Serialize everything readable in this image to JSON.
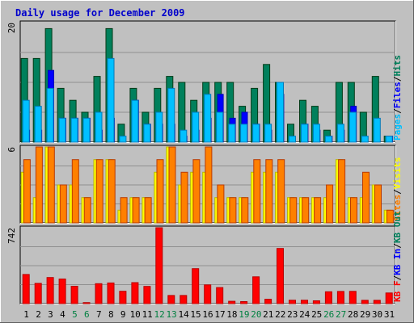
{
  "chart_data": {
    "type": "bar",
    "title": "Daily usage for December 2009",
    "categories": [
      "1",
      "2",
      "3",
      "4",
      "5",
      "6",
      "7",
      "8",
      "9",
      "10",
      "11",
      "12",
      "13",
      "14",
      "15",
      "16",
      "17",
      "18",
      "19",
      "20",
      "21",
      "22",
      "23",
      "24",
      "25",
      "26",
      "27",
      "28",
      "29",
      "30",
      "31"
    ],
    "weekend_days": [
      "5",
      "6",
      "12",
      "13",
      "19",
      "20",
      "26",
      "27"
    ],
    "colors": {
      "title": "#0000cc",
      "weekday_label": "#000000",
      "weekend_label": "#008040",
      "hits": "#00805c",
      "files": "#0000ff",
      "pages": "#00c0ff",
      "visits": "#ffff00",
      "sites": "#ff8000",
      "kb_f": "#ff0000",
      "kb_in": "#0000ff",
      "kb_out": "#00805c",
      "panel": "#c0c0c0",
      "frame": "#c0c0c0"
    },
    "panels": [
      {
        "ymax_label": "20",
        "ymax": 20,
        "legend": [
          {
            "text": "Pages",
            "color": "#00c0ff"
          },
          {
            "text": "/",
            "color": "#000000"
          },
          {
            "text": "Files",
            "color": "#0000ff"
          },
          {
            "text": "/",
            "color": "#000000"
          },
          {
            "text": "Hits",
            "color": "#00805c"
          }
        ],
        "series": [
          {
            "name": "Hits",
            "values": [
              14,
              14,
              19,
              9,
              7,
              5,
              11,
              19,
              3,
              9,
              5,
              9,
              11,
              10,
              7,
              10,
              10,
              10,
              6,
              9,
              13,
              10,
              3,
              7,
              6,
              2,
              10,
              10,
              5,
              11,
              1
            ]
          },
          {
            "name": "Files",
            "values": [
              2,
              2,
              12,
              4,
              4,
              4,
              2,
              4,
              0,
              7,
              3,
              3,
              3,
              1,
              2,
              4,
              8,
              4,
              5,
              3,
              2,
              8,
              0,
              3,
              2,
              1,
              2,
              6,
              0,
              0,
              1
            ]
          },
          {
            "name": "Pages",
            "values": [
              7,
              6,
              9,
              4,
              4,
              4,
              5,
              14,
              1,
              7,
              3,
              5,
              9,
              2,
              5,
              8,
              5,
              3,
              3,
              3,
              3,
              10,
              1,
              3,
              3,
              1,
              3,
              5,
              1,
              4,
              1
            ]
          }
        ]
      },
      {
        "ymax_label": "6",
        "ymax": 6,
        "legend": [
          {
            "text": "Sites",
            "color": "#ff8000"
          },
          {
            "text": "/",
            "color": "#000000"
          },
          {
            "text": "Visits",
            "color": "#ffff00"
          }
        ],
        "series": [
          {
            "name": "Visits",
            "values": [
              4,
              2,
              6,
              3,
              3,
              2,
              5,
              5,
              1,
              2,
              2,
              4,
              6,
              3,
              4,
              4,
              2,
              2,
              2,
              4,
              4,
              4,
              2,
              2,
              2,
              2,
              5,
              2,
              2,
              3,
              1
            ]
          },
          {
            "name": "Sites",
            "values": [
              5,
              6,
              6,
              3,
              5,
              2,
              5,
              5,
              2,
              2,
              2,
              5,
              6,
              4,
              5,
              6,
              3,
              2,
              2,
              5,
              5,
              5,
              2,
              2,
              2,
              3,
              5,
              2,
              4,
              3,
              1
            ]
          }
        ]
      },
      {
        "ymax_label": "742",
        "ymax": 742,
        "legend": [
          {
            "text": "KB F",
            "color": "#ff0000"
          },
          {
            "text": "/",
            "color": "#000000"
          },
          {
            "text": "KB In",
            "color": "#0000ff"
          },
          {
            "text": "/",
            "color": "#000000"
          },
          {
            "text": "KB Out",
            "color": "#00805c"
          }
        ],
        "series": [
          {
            "name": "KB F",
            "values": [
              285,
              198,
              255,
              241,
              170,
              10,
              195,
              202,
              121,
              205,
              168,
              742,
              80,
              80,
              342,
              183,
              157,
              23,
              20,
              262,
              43,
              539,
              33,
              33,
              28,
              116,
              119,
              120,
              32,
              32,
              104
            ]
          }
        ]
      }
    ]
  }
}
